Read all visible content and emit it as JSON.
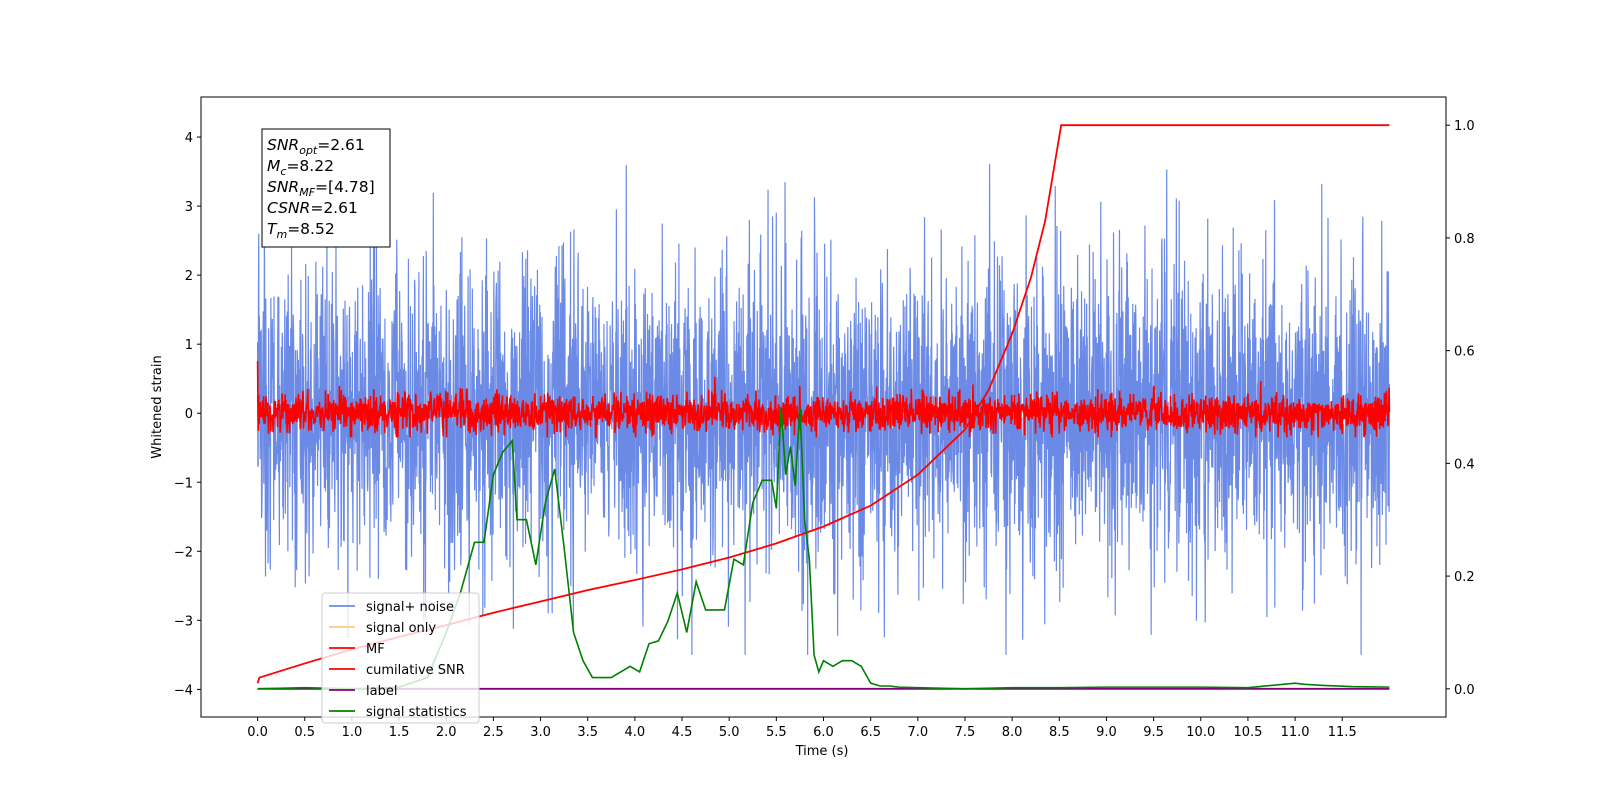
{
  "chart_data": {
    "type": "line",
    "xlabel": "Time (s)",
    "ylabel": "Whitened strain",
    "xlim": [
      -0.6,
      12.6
    ],
    "ylim": [
      -4.4,
      4.58
    ],
    "y2lim": [
      -0.05,
      1.05
    ],
    "xticks": [
      "0.0",
      "0.5",
      "1.0",
      "1.5",
      "2.0",
      "2.5",
      "3.0",
      "3.5",
      "4.0",
      "4.5",
      "5.0",
      "5.5",
      "6.0",
      "6.5",
      "7.0",
      "7.5",
      "8.0",
      "8.5",
      "9.0",
      "9.5",
      "10.0",
      "10.5",
      "11.0",
      "11.5"
    ],
    "yticks": [
      "−4",
      "−3",
      "−2",
      "−1",
      "0",
      "1",
      "2",
      "3",
      "4"
    ],
    "y2ticks": [
      "0.0",
      "0.2",
      "0.4",
      "0.6",
      "0.8",
      "1.0"
    ],
    "legend_position": "lower-left",
    "annotation": [
      {
        "base": "SNR",
        "sub": "opt",
        "value": "=2.61"
      },
      {
        "base": "M",
        "sub": "c",
        "value": "=8.22"
      },
      {
        "base": "SNR",
        "sub": "MF",
        "value": "=[4.78]"
      },
      {
        "base": "CSNR",
        "sub": "",
        "value": "=2.61"
      },
      {
        "base": "T",
        "sub": "m",
        "value": "=8.52"
      }
    ],
    "series": [
      {
        "name": "signal+ noise",
        "color": "#6b8ae6",
        "axis": "left",
        "description": "whitened noise, approx range -3.5 to 4.2"
      },
      {
        "name": "signal only",
        "color": "#ffcc80",
        "axis": "left",
        "x": [],
        "y": []
      },
      {
        "name": "MF",
        "color": "#ff0000",
        "axis": "left",
        "description": "matched filter output, approx range -0.35 to 1.0"
      },
      {
        "name": "cumilative SNR",
        "color": "#ff0000",
        "axis": "right",
        "x": [
          0.0,
          0.02,
          0.5,
          1.0,
          1.5,
          2.0,
          2.5,
          3.0,
          3.5,
          4.0,
          4.5,
          5.0,
          5.5,
          6.0,
          6.5,
          7.0,
          7.5,
          7.75,
          8.0,
          8.2,
          8.35,
          8.45,
          8.5,
          8.52,
          12.0
        ],
        "y": [
          0.01,
          0.02,
          0.045,
          0.07,
          0.092,
          0.113,
          0.135,
          0.155,
          0.175,
          0.193,
          0.212,
          0.233,
          0.258,
          0.288,
          0.325,
          0.38,
          0.46,
          0.53,
          0.63,
          0.73,
          0.83,
          0.93,
          0.98,
          1.0,
          1.0
        ]
      },
      {
        "name": "label",
        "color": "#800080",
        "axis": "right",
        "x": [
          0.0,
          12.0
        ],
        "y": [
          0.0,
          0.0
        ]
      },
      {
        "name": "signal statistics",
        "color": "#008000",
        "axis": "right",
        "x": [
          0.0,
          0.5,
          1.0,
          1.5,
          1.8,
          2.0,
          2.15,
          2.3,
          2.4,
          2.5,
          2.6,
          2.7,
          2.75,
          2.85,
          2.95,
          3.05,
          3.15,
          3.25,
          3.35,
          3.45,
          3.55,
          3.65,
          3.75,
          3.85,
          3.95,
          4.05,
          4.15,
          4.25,
          4.35,
          4.45,
          4.55,
          4.65,
          4.75,
          4.85,
          4.95,
          5.05,
          5.15,
          5.25,
          5.35,
          5.45,
          5.5,
          5.55,
          5.6,
          5.65,
          5.7,
          5.75,
          5.8,
          5.85,
          5.9,
          5.95,
          6.0,
          6.1,
          6.2,
          6.3,
          6.4,
          6.5,
          6.6,
          6.7,
          6.8,
          7.0,
          7.5,
          8.0,
          8.5,
          9.0,
          9.5,
          10.0,
          10.5,
          11.0,
          11.1,
          11.3,
          11.6,
          12.0
        ],
        "y": [
          0.0,
          0.002,
          0.0,
          0.003,
          0.02,
          0.1,
          0.17,
          0.26,
          0.26,
          0.38,
          0.42,
          0.44,
          0.3,
          0.3,
          0.22,
          0.33,
          0.39,
          0.25,
          0.1,
          0.05,
          0.02,
          0.02,
          0.02,
          0.03,
          0.04,
          0.03,
          0.08,
          0.085,
          0.12,
          0.17,
          0.1,
          0.19,
          0.14,
          0.14,
          0.14,
          0.23,
          0.22,
          0.33,
          0.37,
          0.37,
          0.32,
          0.5,
          0.38,
          0.43,
          0.36,
          0.5,
          0.3,
          0.23,
          0.06,
          0.03,
          0.05,
          0.04,
          0.05,
          0.05,
          0.04,
          0.01,
          0.005,
          0.005,
          0.003,
          0.002,
          0.0,
          0.002,
          0.002,
          0.003,
          0.003,
          0.003,
          0.002,
          0.01,
          0.008,
          0.006,
          0.004,
          0.003
        ]
      }
    ]
  }
}
